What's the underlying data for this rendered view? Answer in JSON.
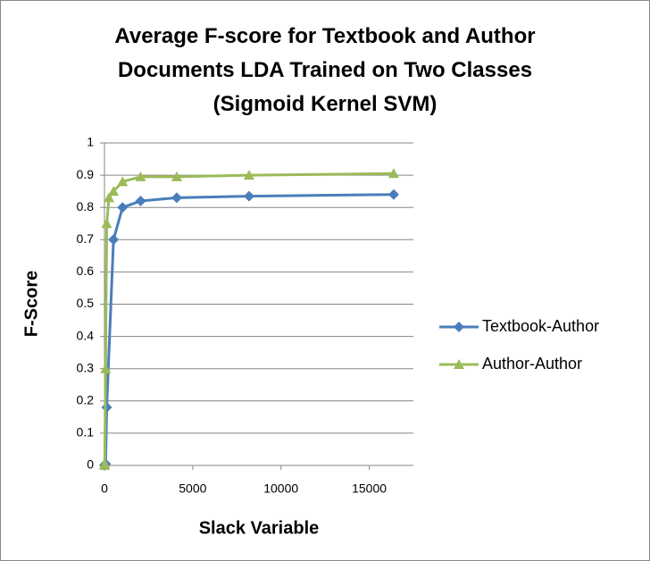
{
  "chart_data": {
    "type": "line",
    "title": "Average F-score for Textbook and Author\nDocuments LDA Trained on Two Classes\n(Sigmoid Kernel SVM)",
    "xlabel": "Slack Variable",
    "ylabel": "F-Score",
    "series": [
      {
        "name": "Textbook-Author",
        "color": "#4a7ebb",
        "marker": "diamond",
        "x": [
          1,
          64,
          128,
          512,
          1024,
          2048,
          4096,
          8192,
          16384
        ],
        "values": [
          0,
          0.005,
          0.18,
          0.7,
          0.8,
          0.82,
          0.83,
          0.835,
          0.84
        ]
      },
      {
        "name": "Author-Author",
        "color": "#9bbb59",
        "marker": "triangle",
        "x": [
          1,
          16,
          64,
          128,
          256,
          512,
          1024,
          2048,
          4096,
          8192,
          16384
        ],
        "values": [
          0,
          0.005,
          0.3,
          0.75,
          0.83,
          0.85,
          0.88,
          0.895,
          0.895,
          0.9,
          0.905
        ]
      }
    ],
    "xlim": [
      0,
      17500
    ],
    "xticks": [
      0,
      5000,
      10000,
      15000
    ],
    "ylim": [
      0,
      1
    ],
    "yticks": [
      0,
      0.1,
      0.2,
      0.3,
      0.4,
      0.5,
      0.6,
      0.7,
      0.8,
      0.9,
      1
    ],
    "grid": true,
    "legend": "right"
  }
}
